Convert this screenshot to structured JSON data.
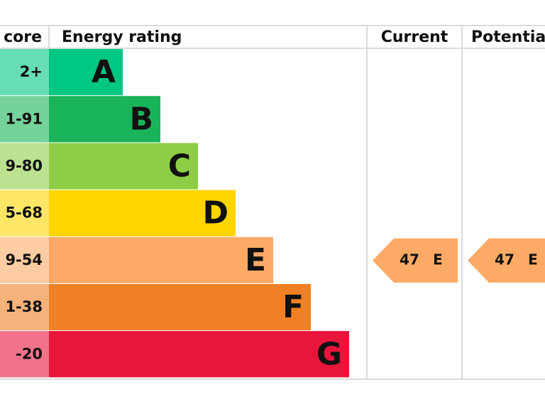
{
  "header": {
    "score": "core",
    "rating": "Energy rating",
    "current": "Current",
    "potential": "Potentia"
  },
  "rows": [
    {
      "range": "2+",
      "letter": "A",
      "color": "#00c781"
    },
    {
      "range": "1-91",
      "letter": "B",
      "color": "#19b459"
    },
    {
      "range": "9-80",
      "letter": "C",
      "color": "#8dce46"
    },
    {
      "range": "5-68",
      "letter": "D",
      "color": "#ffd500"
    },
    {
      "range": "9-54",
      "letter": "E",
      "color": "#fcaa65"
    },
    {
      "range": "1-38",
      "letter": "F",
      "color": "#ef8023"
    },
    {
      "range": "-20",
      "letter": "G",
      "color": "#e9153b"
    }
  ],
  "current": {
    "score": 47,
    "rating": "E"
  },
  "potential": {
    "score": 47,
    "rating": "E"
  }
}
